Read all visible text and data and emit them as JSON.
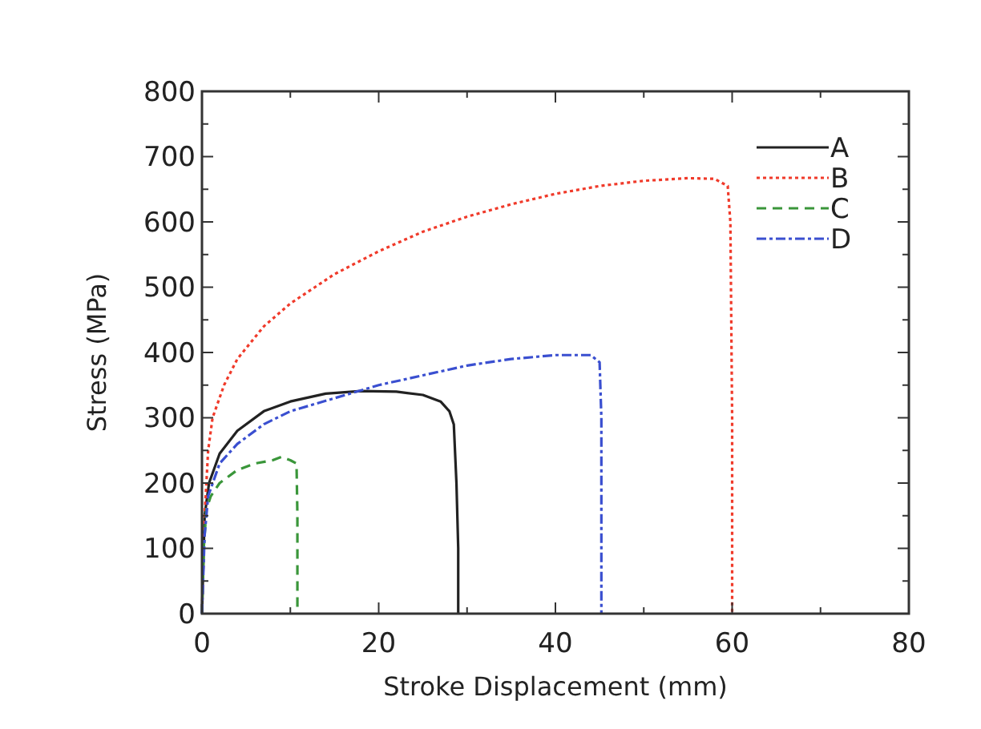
{
  "chart_data": {
    "type": "line",
    "xlabel": "Stroke Displacement (mm)",
    "ylabel": "Stress (MPa)",
    "xlim": [
      0,
      80
    ],
    "ylim": [
      0,
      800
    ],
    "xticks": [
      0,
      {
        "value": 10,
        "label": null
      },
      20,
      {
        "value": 30,
        "label": null
      },
      40,
      {
        "value": 50,
        "label": null
      },
      60,
      {
        "value": 70,
        "label": null
      },
      80
    ],
    "yticks": [
      0,
      {
        "value": 50,
        "label": null
      },
      100,
      {
        "value": 150,
        "label": null
      },
      200,
      {
        "value": 250,
        "label": null
      },
      300,
      {
        "value": 350,
        "label": null
      },
      400,
      {
        "value": 450,
        "label": null
      },
      500,
      {
        "value": 550,
        "label": null
      },
      600,
      {
        "value": 650,
        "label": null
      },
      700,
      {
        "value": 750,
        "label": null
      },
      800
    ],
    "grid": false,
    "legend": "top right",
    "series": [
      {
        "name": "A",
        "color": "#222222",
        "line_style": "solid",
        "x": [
          0,
          0.3,
          0.8,
          2,
          4,
          7,
          10,
          14,
          18,
          22,
          25,
          27,
          28,
          28.5,
          28.8,
          29,
          29
        ],
        "values": [
          0,
          150,
          200,
          245,
          280,
          310,
          325,
          337,
          341,
          340,
          335,
          325,
          310,
          290,
          200,
          100,
          0
        ]
      },
      {
        "name": "B",
        "color": "#f03a2a",
        "line_style": "dotted",
        "x": [
          0,
          0.3,
          0.7,
          1.2,
          2.5,
          4,
          7,
          10,
          15,
          20,
          25,
          30,
          35,
          40,
          45,
          50,
          55,
          58,
          59.5,
          59.8,
          60,
          60
        ],
        "values": [
          0,
          150,
          250,
          300,
          350,
          390,
          440,
          475,
          520,
          555,
          585,
          608,
          627,
          643,
          655,
          663,
          667,
          666,
          655,
          600,
          300,
          0
        ]
      },
      {
        "name": "C",
        "color": "#3a963a",
        "line_style": "dashed",
        "x": [
          0,
          0.2,
          0.5,
          1,
          2,
          4,
          6,
          8,
          9,
          10,
          10.7,
          10.8,
          10.8
        ],
        "values": [
          0,
          100,
          160,
          180,
          200,
          220,
          230,
          235,
          240,
          235,
          230,
          150,
          0
        ]
      },
      {
        "name": "D",
        "color": "#3a4fd0",
        "line_style": "dashdot",
        "x": [
          0,
          0.3,
          0.7,
          2,
          4,
          7,
          10,
          15,
          20,
          25,
          30,
          35,
          40,
          44,
          45,
          45.2,
          45.2
        ],
        "values": [
          0,
          120,
          180,
          230,
          260,
          290,
          310,
          330,
          350,
          365,
          380,
          390,
          396,
          396,
          385,
          300,
          0
        ]
      }
    ]
  }
}
